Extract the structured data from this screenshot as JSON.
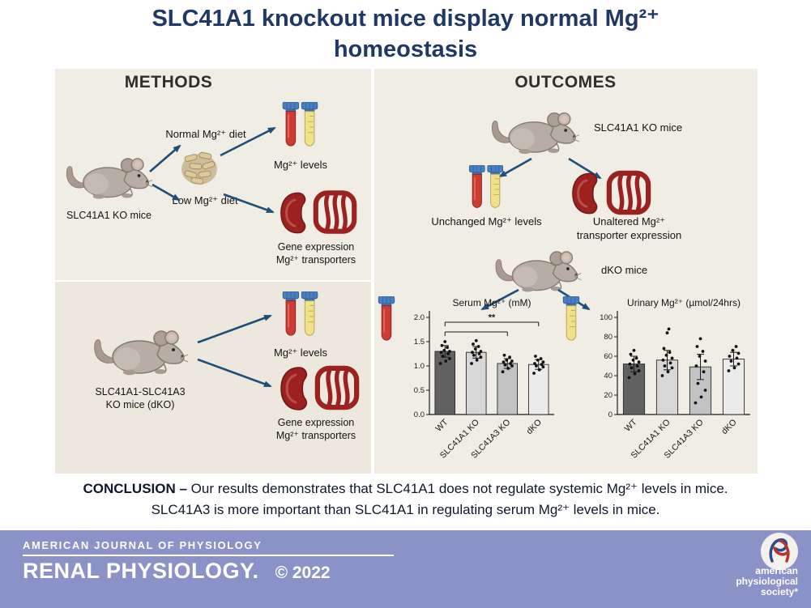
{
  "colors": {
    "title_navy": "#1f3864",
    "panel_bg": "#f0ede4",
    "panel_bg_alt": "#ece8de",
    "arrow_blue": "#1f4e79",
    "footer_purple": "#8a92c8",
    "organ_red": "#9c2121",
    "tube_red": "#cd3b35",
    "tube_yellow": "#f0e18a",
    "tube_cap_blue": "#4a80c2",
    "mouse_gray": "#b8ada4"
  },
  "icons": [
    "mouse-icon",
    "food-pellets-icon",
    "test-tubes-icon",
    "blood-tube-icon",
    "urine-tube-icon",
    "kidney-icon",
    "intestine-icon",
    "flow-arrow-icon",
    "aps-logo-icon"
  ],
  "header": {
    "title_line1": "SLC41A1 knockout mice display normal Mg²⁺",
    "title_line2": "homeostasis"
  },
  "methods": {
    "header": "METHODS",
    "top": {
      "mouse_label": "SLC41A1 KO mice",
      "normal_diet_label": "Normal Mg²⁺ diet",
      "low_diet_label": "Low Mg²⁺ diet",
      "tubes_label": "Mg²⁺ levels",
      "organs_label": "Gene expression\nMg²⁺ transporters"
    },
    "bottom": {
      "mouse_label": "SLC41A1-SLC41A3\nKO mice (dKO)",
      "tubes_label": "Mg²⁺ levels",
      "organs_label": "Gene expression\nMg²⁺ transporters"
    }
  },
  "outcomes": {
    "header": "OUTCOMES",
    "ko_mouse_label": "SLC41A1 KO mice",
    "tubes_label": "Unchanged Mg²⁺ levels",
    "organs_label": "Unaltered Mg²⁺\ntransporter expression",
    "dko_mouse_label": "dKO mice"
  },
  "chart_data": [
    {
      "id": "serum",
      "type": "bar",
      "title": "Serum Mg²⁺ (mM)",
      "categories": [
        "WT",
        "SLC41A1 KO",
        "SLC41A3 KO",
        "dKO"
      ],
      "values": [
        1.3,
        1.28,
        1.05,
        1.03
      ],
      "errors": [
        0.12,
        0.12,
        0.1,
        0.1
      ],
      "points": [
        [
          1.05,
          1.1,
          1.15,
          1.2,
          1.25,
          1.28,
          1.3,
          1.32,
          1.38,
          1.42,
          1.5
        ],
        [
          1.05,
          1.12,
          1.18,
          1.22,
          1.25,
          1.28,
          1.3,
          1.35,
          1.4,
          1.45,
          1.52
        ],
        [
          0.88,
          0.95,
          1.0,
          1.02,
          1.05,
          1.08,
          1.1,
          1.12,
          1.18,
          1.22
        ],
        [
          0.85,
          0.92,
          0.98,
          1.0,
          1.03,
          1.05,
          1.08,
          1.12,
          1.15,
          1.2
        ]
      ],
      "ylim": [
        0,
        2.0
      ],
      "yticks": [
        0,
        0.5,
        1.0,
        1.5,
        2.0
      ],
      "ytick_labels": [
        "0.0",
        "0.5",
        "1.0",
        "1.5",
        "2.0"
      ],
      "bar_colors": [
        "#616161",
        "#d7d7d7",
        "#c2c2c2",
        "#ebebeb"
      ],
      "comparisons": [
        {
          "from": 0,
          "to": 2,
          "y": 1.7,
          "label": ""
        },
        {
          "from": 0,
          "to": 3,
          "y": 1.9,
          "label": "**"
        }
      ],
      "grid": false,
      "legend": "none"
    },
    {
      "id": "urinary",
      "type": "bar",
      "title": "Urinary Mg²⁺ (µmol/24hrs)",
      "categories": [
        "WT",
        "SLC41A1 KO",
        "SLC41A3 KO",
        "dKO"
      ],
      "values": [
        52,
        56,
        49,
        57
      ],
      "errors": [
        8,
        10,
        13,
        7
      ],
      "points": [
        [
          38,
          42,
          45,
          48,
          50,
          52,
          54,
          56,
          58,
          62,
          66
        ],
        [
          40,
          44,
          48,
          50,
          53,
          56,
          58,
          61,
          64,
          68,
          84,
          88
        ],
        [
          12,
          18,
          25,
          32,
          44,
          50,
          55,
          60,
          65,
          70,
          78
        ],
        [
          45,
          48,
          52,
          55,
          58,
          60,
          63,
          66,
          70
        ]
      ],
      "ylim": [
        0,
        100
      ],
      "yticks": [
        0,
        20,
        40,
        60,
        80,
        100
      ],
      "ytick_labels": [
        "0",
        "20",
        "40",
        "60",
        "80",
        "100"
      ],
      "bar_colors": [
        "#616161",
        "#d7d7d7",
        "#c2c2c2",
        "#ebebeb"
      ],
      "comparisons": [],
      "grid": false,
      "legend": "none"
    }
  ],
  "conclusion": {
    "label": "CONCLUSION –",
    "text": " Our results demonstrates that SLC41A1 does not regulate systemic Mg²⁺ levels in mice. SLC41A3 is more important than SLC41A1 in regulating serum Mg²⁺ levels in mice."
  },
  "footer": {
    "journal_family": "AMERICAN JOURNAL OF PHYSIOLOGY",
    "journal_title": "RENAL PHYSIOLOGY.",
    "copyright": "© 2022",
    "society_name": "american\nphysiological\nsociety*"
  }
}
